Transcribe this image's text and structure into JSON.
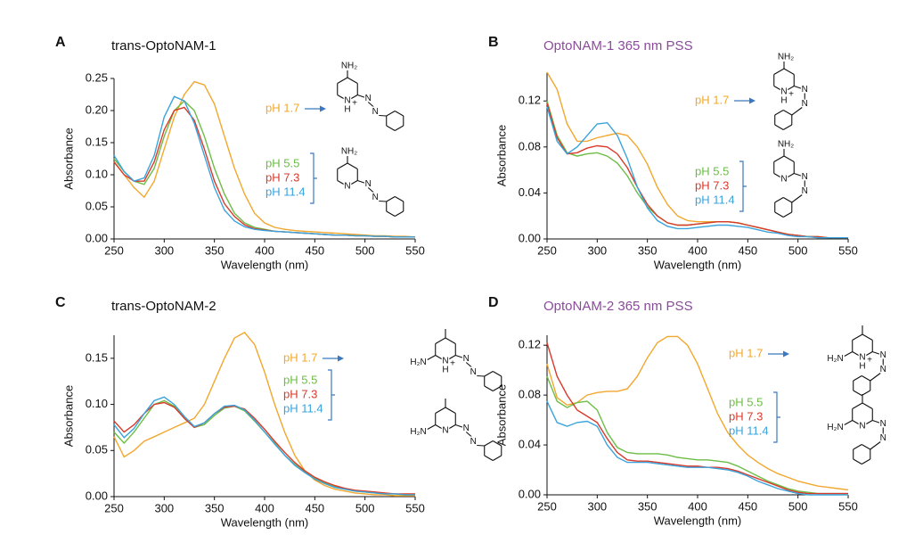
{
  "chart_data": [
    {
      "type": "line",
      "panel": "A",
      "title": "trans-OptoNAM-1",
      "title_color": "#111111",
      "xlabel": "Wavelength (nm)",
      "ylabel": "Absorbance",
      "x": [
        250,
        260,
        270,
        280,
        290,
        300,
        310,
        320,
        330,
        340,
        350,
        360,
        370,
        380,
        390,
        400,
        410,
        420,
        430,
        440,
        450,
        460,
        470,
        480,
        490,
        500,
        510,
        520,
        530,
        540,
        550
      ],
      "xlim": [
        250,
        550
      ],
      "xticks": [
        250,
        300,
        350,
        400,
        450,
        500,
        550
      ],
      "ylim": [
        0,
        0.25
      ],
      "yticks": [
        {
          "value": 0,
          "label": "0.00"
        },
        {
          "value": 0.05,
          "label": "0.05"
        },
        {
          "value": 0.1,
          "label": "0.10"
        },
        {
          "value": 0.15,
          "label": "0.15"
        },
        {
          "value": 0.2,
          "label": "0.20"
        },
        {
          "value": 0.25,
          "label": "0.25"
        }
      ],
      "series": [
        {
          "name": "pH 1.7",
          "color": "#f2a72e",
          "values": [
            0.12,
            0.1,
            0.08,
            0.065,
            0.09,
            0.14,
            0.19,
            0.225,
            0.245,
            0.24,
            0.21,
            0.16,
            0.11,
            0.07,
            0.04,
            0.025,
            0.018,
            0.015,
            0.013,
            0.012,
            0.011,
            0.01,
            0.009,
            0.008,
            0.007,
            0.006,
            0.005,
            0.005,
            0.004,
            0.004,
            0.003
          ]
        },
        {
          "name": "pH 5.5",
          "color": "#6cbd45",
          "values": [
            0.125,
            0.105,
            0.09,
            0.085,
            0.11,
            0.16,
            0.2,
            0.215,
            0.2,
            0.16,
            0.11,
            0.07,
            0.04,
            0.025,
            0.018,
            0.015,
            0.012,
            0.011,
            0.01,
            0.009,
            0.008,
            0.007,
            0.006,
            0.006,
            0.005,
            0.005,
            0.004,
            0.004,
            0.003,
            0.003,
            0.003
          ]
        },
        {
          "name": "pH 7.3",
          "color": "#d93a2b",
          "values": [
            0.12,
            0.1,
            0.09,
            0.09,
            0.12,
            0.17,
            0.2,
            0.205,
            0.185,
            0.14,
            0.09,
            0.055,
            0.035,
            0.022,
            0.016,
            0.014,
            0.012,
            0.011,
            0.01,
            0.009,
            0.008,
            0.007,
            0.006,
            0.006,
            0.005,
            0.005,
            0.004,
            0.004,
            0.003,
            0.003,
            0.003
          ]
        },
        {
          "name": "pH 11.4",
          "color": "#3aa3dc",
          "values": [
            0.13,
            0.105,
            0.09,
            0.095,
            0.13,
            0.19,
            0.222,
            0.215,
            0.18,
            0.13,
            0.08,
            0.045,
            0.028,
            0.019,
            0.015,
            0.013,
            0.012,
            0.011,
            0.01,
            0.009,
            0.008,
            0.007,
            0.006,
            0.006,
            0.005,
            0.005,
            0.004,
            0.004,
            0.003,
            0.003,
            0.003
          ]
        }
      ],
      "structures": [
        {
          "atoms": [
            "NH₂",
            "N",
            "H",
            "+",
            "N",
            "N"
          ]
        },
        {
          "atoms": [
            "NH₂",
            "N",
            "N",
            "N"
          ]
        }
      ]
    },
    {
      "type": "line",
      "panel": "B",
      "title": "OptoNAM-1 365 nm PSS",
      "title_color": "#8b4a9c",
      "xlabel": "Wavelength (nm)",
      "ylabel": "Absorbance",
      "x": [
        250,
        260,
        270,
        280,
        290,
        300,
        310,
        320,
        330,
        340,
        350,
        360,
        370,
        380,
        390,
        400,
        410,
        420,
        430,
        440,
        450,
        460,
        470,
        480,
        490,
        500,
        510,
        520,
        530,
        540,
        550
      ],
      "xlim": [
        250,
        550
      ],
      "xticks": [
        250,
        300,
        350,
        400,
        450,
        500,
        550
      ],
      "ylim": [
        0,
        0.145
      ],
      "yticks": [
        {
          "value": 0,
          "label": "0.00"
        },
        {
          "value": 0.04,
          "label": "0.04"
        },
        {
          "value": 0.08,
          "label": "0.08"
        },
        {
          "value": 0.12,
          "label": "0.12"
        }
      ],
      "series": [
        {
          "name": "pH 1.7",
          "color": "#f2a72e",
          "values": [
            0.145,
            0.13,
            0.1,
            0.085,
            0.085,
            0.088,
            0.09,
            0.092,
            0.09,
            0.08,
            0.065,
            0.045,
            0.03,
            0.02,
            0.016,
            0.015,
            0.015,
            0.015,
            0.015,
            0.014,
            0.012,
            0.01,
            0.008,
            0.006,
            0.004,
            0.003,
            0.002,
            0.002,
            0.001,
            0.001,
            0.001
          ]
        },
        {
          "name": "pH 5.5",
          "color": "#6cbd45",
          "values": [
            0.12,
            0.09,
            0.075,
            0.072,
            0.074,
            0.075,
            0.072,
            0.066,
            0.055,
            0.04,
            0.028,
            0.02,
            0.014,
            0.012,
            0.012,
            0.013,
            0.014,
            0.015,
            0.015,
            0.014,
            0.012,
            0.01,
            0.008,
            0.006,
            0.004,
            0.003,
            0.002,
            0.002,
            0.001,
            0.001,
            0.001
          ]
        },
        {
          "name": "pH 7.3",
          "color": "#d93a2b",
          "values": [
            0.118,
            0.088,
            0.074,
            0.075,
            0.079,
            0.081,
            0.08,
            0.074,
            0.062,
            0.045,
            0.03,
            0.02,
            0.014,
            0.012,
            0.012,
            0.013,
            0.014,
            0.015,
            0.015,
            0.014,
            0.012,
            0.01,
            0.008,
            0.006,
            0.004,
            0.003,
            0.002,
            0.002,
            0.001,
            0.001,
            0.001
          ]
        },
        {
          "name": "pH 11.4",
          "color": "#3aa3dc",
          "values": [
            0.115,
            0.085,
            0.074,
            0.08,
            0.09,
            0.1,
            0.101,
            0.09,
            0.07,
            0.045,
            0.027,
            0.016,
            0.011,
            0.009,
            0.009,
            0.01,
            0.011,
            0.012,
            0.012,
            0.011,
            0.01,
            0.008,
            0.006,
            0.005,
            0.003,
            0.002,
            0.002,
            0.001,
            0.001,
            0.001,
            0.001
          ]
        }
      ],
      "structures": [
        {
          "atoms": [
            "NH₂",
            "N",
            "H",
            "+",
            "N",
            "N"
          ]
        },
        {
          "atoms": [
            "NH₂",
            "N",
            "N",
            "N"
          ]
        }
      ]
    },
    {
      "type": "line",
      "panel": "C",
      "title": "trans-OptoNAM-2",
      "title_color": "#111111",
      "xlabel": "Wavelength (nm)",
      "ylabel": "Absorbance",
      "x": [
        250,
        260,
        270,
        280,
        290,
        300,
        310,
        320,
        330,
        340,
        350,
        360,
        370,
        380,
        390,
        400,
        410,
        420,
        430,
        440,
        450,
        460,
        470,
        480,
        490,
        500,
        510,
        520,
        530,
        540,
        550
      ],
      "xlim": [
        250,
        550
      ],
      "xticks": [
        250,
        300,
        350,
        400,
        450,
        500,
        550
      ],
      "ylim": [
        0,
        0.175
      ],
      "yticks": [
        {
          "value": 0,
          "label": "0.00"
        },
        {
          "value": 0.05,
          "label": "0.05"
        },
        {
          "value": 0.1,
          "label": "0.10"
        },
        {
          "value": 0.15,
          "label": "0.15"
        }
      ],
      "series": [
        {
          "name": "pH 1.7",
          "color": "#f2a72e",
          "values": [
            0.065,
            0.043,
            0.05,
            0.06,
            0.065,
            0.07,
            0.075,
            0.08,
            0.085,
            0.1,
            0.125,
            0.15,
            0.172,
            0.178,
            0.165,
            0.135,
            0.1,
            0.07,
            0.045,
            0.028,
            0.018,
            0.012,
            0.008,
            0.006,
            0.004,
            0.003,
            0.002,
            0.002,
            0.001,
            0.001,
            0.001
          ]
        },
        {
          "name": "pH 5.5",
          "color": "#6cbd45",
          "values": [
            0.07,
            0.058,
            0.07,
            0.085,
            0.1,
            0.104,
            0.098,
            0.085,
            0.075,
            0.078,
            0.088,
            0.096,
            0.098,
            0.093,
            0.082,
            0.07,
            0.058,
            0.045,
            0.035,
            0.027,
            0.02,
            0.015,
            0.011,
            0.008,
            0.006,
            0.005,
            0.004,
            0.003,
            0.003,
            0.002,
            0.002
          ]
        },
        {
          "name": "pH 7.3",
          "color": "#d93a2b",
          "values": [
            0.082,
            0.07,
            0.078,
            0.09,
            0.1,
            0.102,
            0.097,
            0.085,
            0.075,
            0.08,
            0.09,
            0.097,
            0.098,
            0.095,
            0.085,
            0.073,
            0.06,
            0.048,
            0.037,
            0.028,
            0.021,
            0.016,
            0.012,
            0.009,
            0.007,
            0.006,
            0.005,
            0.004,
            0.003,
            0.003,
            0.003
          ]
        },
        {
          "name": "pH 11.4",
          "color": "#3aa3dc",
          "values": [
            0.078,
            0.064,
            0.074,
            0.09,
            0.104,
            0.108,
            0.1,
            0.087,
            0.076,
            0.08,
            0.09,
            0.098,
            0.099,
            0.094,
            0.083,
            0.07,
            0.057,
            0.045,
            0.034,
            0.026,
            0.019,
            0.014,
            0.01,
            0.008,
            0.006,
            0.005,
            0.004,
            0.003,
            0.003,
            0.002,
            0.002
          ]
        }
      ],
      "structures": [
        {
          "atoms": [
            "H₂N",
            "N",
            "H",
            "+",
            "N",
            "N"
          ]
        },
        {
          "atoms": [
            "H₂N",
            "N",
            "N",
            "N"
          ]
        }
      ]
    },
    {
      "type": "line",
      "panel": "D",
      "title": "OptoNAM-2 365 nm PSS",
      "title_color": "#8b4a9c",
      "xlabel": "Wavelength (nm)",
      "ylabel": "Absorbance",
      "x": [
        250,
        260,
        270,
        280,
        290,
        300,
        310,
        320,
        330,
        340,
        350,
        360,
        370,
        380,
        390,
        400,
        410,
        420,
        430,
        440,
        450,
        460,
        470,
        480,
        490,
        500,
        510,
        520,
        530,
        540,
        550
      ],
      "xlim": [
        250,
        550
      ],
      "xticks": [
        250,
        300,
        350,
        400,
        450,
        500,
        550
      ],
      "ylim": [
        0,
        0.128
      ],
      "yticks": [
        {
          "value": 0,
          "label": "0.00"
        },
        {
          "value": 0.04,
          "label": "0.04"
        },
        {
          "value": 0.08,
          "label": "0.08"
        },
        {
          "value": 0.12,
          "label": "0.12"
        }
      ],
      "series": [
        {
          "name": "pH 1.7",
          "color": "#f2a72e",
          "values": [
            0.105,
            0.078,
            0.072,
            0.074,
            0.08,
            0.082,
            0.083,
            0.083,
            0.085,
            0.095,
            0.11,
            0.122,
            0.127,
            0.127,
            0.12,
            0.105,
            0.085,
            0.065,
            0.05,
            0.04,
            0.032,
            0.026,
            0.021,
            0.017,
            0.014,
            0.011,
            0.009,
            0.007,
            0.006,
            0.005,
            0.004
          ]
        },
        {
          "name": "pH 5.5",
          "color": "#6cbd45",
          "values": [
            0.095,
            0.075,
            0.07,
            0.074,
            0.075,
            0.068,
            0.05,
            0.038,
            0.034,
            0.033,
            0.033,
            0.033,
            0.032,
            0.03,
            0.029,
            0.028,
            0.028,
            0.027,
            0.026,
            0.023,
            0.019,
            0.015,
            0.011,
            0.008,
            0.005,
            0.003,
            0.002,
            0.001,
            0.001,
            0.001,
            0.001
          ]
        },
        {
          "name": "pH 7.3",
          "color": "#d93a2b",
          "values": [
            0.122,
            0.095,
            0.08,
            0.068,
            0.063,
            0.058,
            0.045,
            0.034,
            0.028,
            0.027,
            0.027,
            0.026,
            0.025,
            0.024,
            0.023,
            0.023,
            0.022,
            0.022,
            0.021,
            0.019,
            0.016,
            0.013,
            0.01,
            0.007,
            0.004,
            0.002,
            0.001,
            0.001,
            0.001,
            0.001,
            0.001
          ]
        },
        {
          "name": "pH 11.4",
          "color": "#3aa3dc",
          "values": [
            0.075,
            0.058,
            0.055,
            0.058,
            0.059,
            0.055,
            0.04,
            0.03,
            0.026,
            0.026,
            0.026,
            0.025,
            0.024,
            0.023,
            0.022,
            0.022,
            0.022,
            0.021,
            0.02,
            0.018,
            0.015,
            0.011,
            0.008,
            0.005,
            0.003,
            0.001,
            0,
            0,
            0,
            0,
            0
          ]
        }
      ],
      "structures": [
        {
          "atoms": [
            "H₂N",
            "N",
            "H",
            "+",
            "N",
            "N"
          ]
        },
        {
          "atoms": [
            "H₂N",
            "N",
            "N",
            "N"
          ]
        }
      ]
    }
  ]
}
